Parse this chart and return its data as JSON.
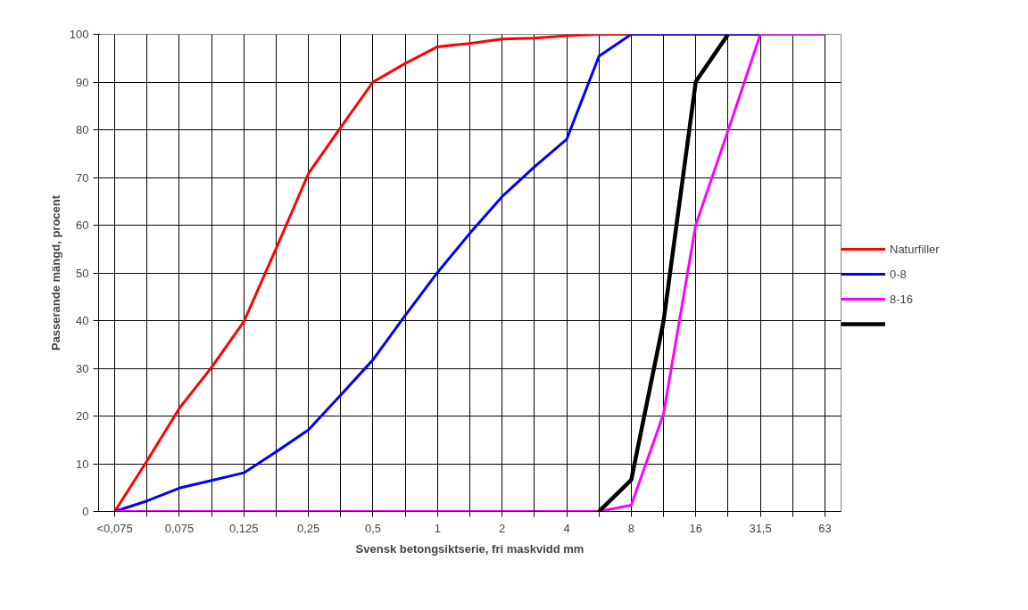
{
  "chart_data": {
    "type": "line",
    "xlabel": "Svensk betongsiktserie, fri maskvidd mm",
    "ylabel": "Passerande mängd, procent",
    "categories": [
      "<0,075",
      null,
      "0,075",
      null,
      "0,125",
      null,
      "0,25",
      null,
      "0,5",
      null,
      "1",
      null,
      "2",
      null,
      "4",
      null,
      "8",
      null,
      "16",
      null,
      "31,5",
      null,
      "63"
    ],
    "series": [
      {
        "name": "Naturfiller",
        "color": "#ff0000",
        "values": [
          0,
          10.6,
          21.6,
          30.2,
          39.8,
          55.1,
          70.8,
          80.5,
          90.0,
          93.9,
          97.4,
          98.1,
          99.0,
          99.2,
          99.7,
          100,
          100,
          null,
          null,
          null,
          null,
          null,
          null
        ]
      },
      {
        "name": "0-8",
        "color": "#0000ff",
        "values": [
          0,
          2.2,
          4.9,
          6.5,
          8.1,
          12.5,
          17.1,
          24.4,
          31.8,
          41.1,
          50.1,
          58.3,
          66.0,
          72.2,
          78.0,
          95.4,
          100,
          100,
          100,
          100,
          100,
          null,
          null
        ]
      },
      {
        "name": "8-16",
        "color": "#ff00ff",
        "values": [
          0,
          0,
          0,
          0,
          0,
          0,
          0,
          0,
          0,
          0,
          0,
          0,
          0,
          0,
          0,
          0,
          1.3,
          20.4,
          60.1,
          79.8,
          100,
          100,
          100
        ]
      },
      {
        "color": "#000000",
        "values": [
          null,
          null,
          null,
          null,
          null,
          null,
          null,
          null,
          null,
          null,
          null,
          null,
          null,
          null,
          null,
          0,
          6.6,
          39.8,
          90.1,
          100,
          null,
          null,
          null
        ]
      }
    ],
    "ylim": [
      0,
      100
    ],
    "yticks": [
      0,
      10,
      20,
      30,
      40,
      50,
      60,
      70,
      80,
      90,
      100
    ],
    "grid": true,
    "legend": "right"
  }
}
